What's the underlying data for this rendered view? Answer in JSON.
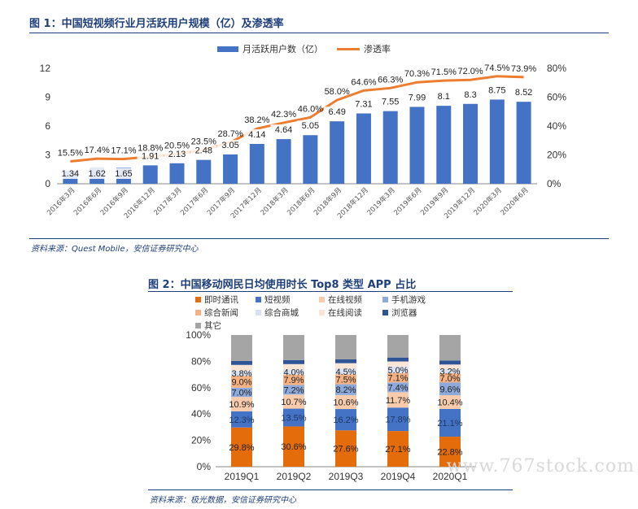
{
  "figure1": {
    "title": "图 1：中国短视频行业月活跃用户规模（亿）及渗透率",
    "source": "资料来源：Quest Mobile，安信证券研究中心"
  },
  "figure2": {
    "title": "图 2：中国移动网民日均使用时长 Top8 类型 APP 占比",
    "source": "资料来源：极光数据，安信证券研究中心"
  },
  "watermark": "www.767stock.com",
  "chart_data": [
    {
      "type": "bar",
      "categories": [
        "2016年3月",
        "2016年6月",
        "2016年9月",
        "2016年12月",
        "2017年3月",
        "2017年6月",
        "2017年9月",
        "2017年12月",
        "2018年3月",
        "2018年6月",
        "2018年9月",
        "2018年12月",
        "2019年3月",
        "2019年6月",
        "2019年9月",
        "2019年12月",
        "2020年3月",
        "2020年6月"
      ],
      "series": [
        {
          "name": "月活跃用户数（亿）",
          "type": "bar",
          "axis": "left",
          "color": "#4472c4",
          "values": [
            1.34,
            1.62,
            1.65,
            1.91,
            2.13,
            2.48,
            3.05,
            4.14,
            4.64,
            5.05,
            6.49,
            7.31,
            7.55,
            7.99,
            8.1,
            8.3,
            8.75,
            8.52
          ],
          "labels": [
            "1.34",
            "1.62",
            "1.65",
            "1.91",
            "2.13",
            "2.48",
            "3.05",
            "4.14",
            "4.64",
            "5.05",
            "6.49",
            "7.31",
            "7.55",
            "7.99",
            "8.1",
            "8.3",
            "8.75",
            "8.52"
          ]
        },
        {
          "name": "渗透率",
          "type": "line",
          "axis": "right",
          "color": "#ed7d31",
          "values": [
            15.5,
            17.4,
            17.1,
            18.8,
            20.5,
            23.5,
            28.7,
            38.2,
            42.3,
            46.0,
            58.0,
            64.6,
            66.3,
            70.3,
            71.5,
            72.0,
            74.5,
            73.9
          ],
          "labels": [
            "15.5%",
            "17.4%",
            "17.1%",
            "18.8%",
            "20.5%",
            "23.5%",
            "28.7%",
            "38.2%",
            "42.3%",
            "46.0%",
            "58.0%",
            "64.6%",
            "66.3%",
            "70.3%",
            "71.5%",
            "72.0%",
            "74.5%",
            "73.9%"
          ]
        }
      ],
      "ylim_left": [
        0,
        12
      ],
      "yticks_left": [
        "0",
        "3",
        "6",
        "9",
        "12"
      ],
      "ylim_right": [
        0,
        80
      ],
      "yticks_right": [
        "0%",
        "20%",
        "40%",
        "60%",
        "80%"
      ],
      "legend_position": "top-center",
      "grid": false
    },
    {
      "type": "bar",
      "stacked": true,
      "categories": [
        "2019Q1",
        "2019Q2",
        "2019Q3",
        "2019Q4",
        "2020Q1"
      ],
      "series": [
        {
          "name": "即时通讯",
          "color": "#e46c0a",
          "values": [
            29.8,
            30.6,
            27.6,
            27.1,
            22.8
          ],
          "labels": [
            "29.8%",
            "30.6%",
            "27.6%",
            "27.1%",
            "22.8%"
          ]
        },
        {
          "name": "短视频",
          "color": "#4472c4",
          "values": [
            12.3,
            13.5,
            16.2,
            17.8,
            21.1
          ],
          "labels": [
            "12.3%",
            "13.5%",
            "16.2%",
            "17.8%",
            "21.1%"
          ]
        },
        {
          "name": "在线视频",
          "color": "#f8cbad",
          "values": [
            10.9,
            10.7,
            10.6,
            11.7,
            10.4
          ],
          "labels": [
            "10.9%",
            "10.7%",
            "10.6%",
            "11.7%",
            "10.4%"
          ]
        },
        {
          "name": "手机游戏",
          "color": "#8eaadb",
          "values": [
            7.0,
            7.2,
            8.2,
            7.4,
            9.6
          ],
          "labels": [
            "7.0%",
            "7.2%",
            "8.2%",
            "7.4%",
            "9.6%"
          ]
        },
        {
          "name": "综合新闻",
          "color": "#f4b183",
          "values": [
            9.0,
            7.9,
            7.5,
            7.1,
            7.0
          ],
          "labels": [
            "9.0%",
            "7.9%",
            "7.5%",
            "7.1%",
            "7.0%"
          ]
        },
        {
          "name": "综合商城",
          "color": "#d9e2f3",
          "values": [
            3.8,
            4.0,
            4.5,
            5.0,
            3.2
          ],
          "labels": [
            "3.8%",
            "4.0%",
            "4.5%",
            "5.0%",
            "3.2%"
          ]
        },
        {
          "name": "在线阅读",
          "color": "#fbe5d6",
          "values": [
            4.5,
            4.0,
            4.0,
            3.8,
            3.5
          ],
          "labels": [
            "",
            "",
            "",
            "",
            ""
          ]
        },
        {
          "name": "浏览器",
          "color": "#2f5597",
          "values": [
            3.0,
            3.0,
            2.9,
            3.0,
            3.0
          ],
          "labels": [
            "",
            "",
            "",
            "",
            ""
          ]
        },
        {
          "name": "其它",
          "color": "#a5a5a5",
          "values": [
            19.7,
            19.1,
            18.5,
            17.1,
            19.4
          ],
          "labels": [
            "",
            "",
            "",
            "",
            ""
          ]
        }
      ],
      "ylim": [
        0,
        100
      ],
      "yticks": [
        "0%",
        "20%",
        "40%",
        "60%",
        "80%",
        "100%"
      ],
      "legend_position": "top",
      "grid": false
    }
  ]
}
